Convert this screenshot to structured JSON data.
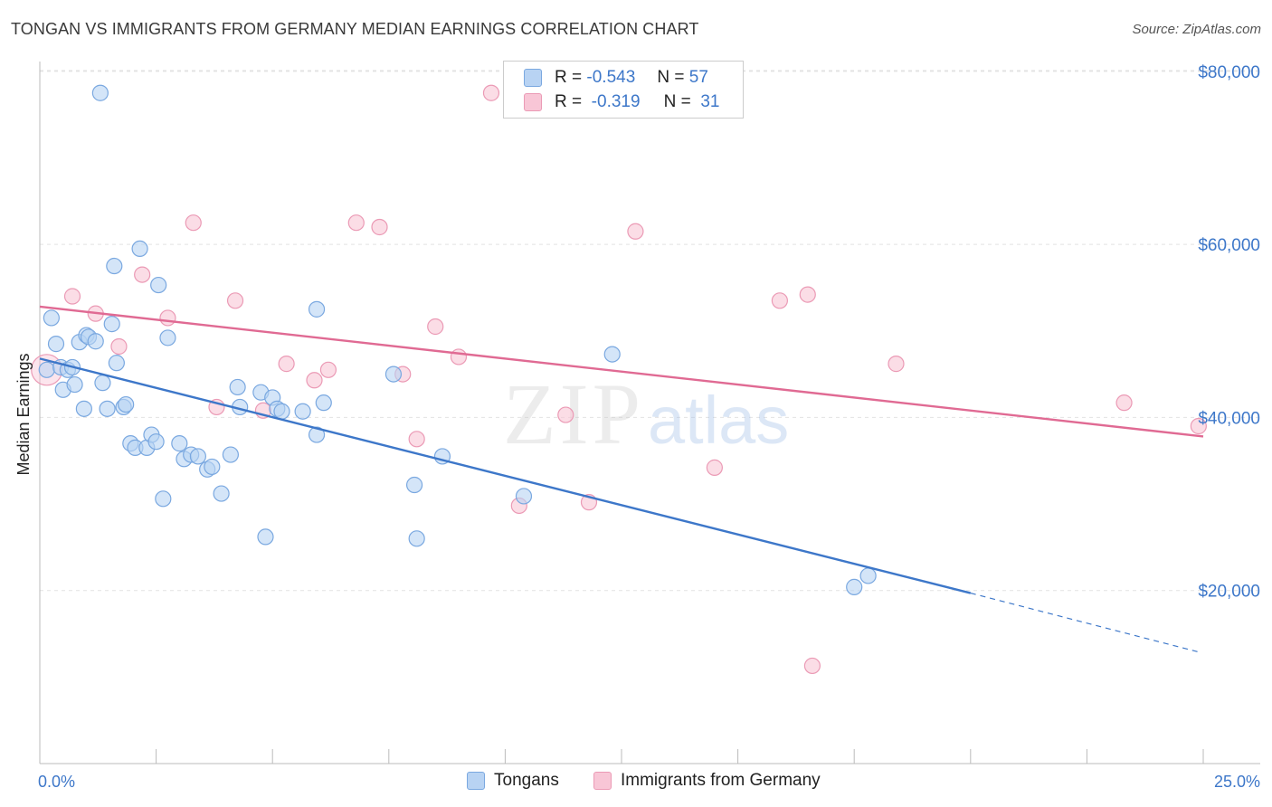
{
  "title": "TONGAN VS IMMIGRANTS FROM GERMANY MEDIAN EARNINGS CORRELATION CHART",
  "source": "Source: ZipAtlas.com",
  "watermark": {
    "zip": "ZIP",
    "atlas": "atlas"
  },
  "legend": {
    "r_label": "R =",
    "n_label": "N =",
    "series": [
      {
        "r": "-0.543",
        "n": "57",
        "color": "#3d77c9",
        "fill": "#b8d3f3",
        "stroke": "#7aa8e0"
      },
      {
        "r": "-0.319",
        "n": "31",
        "color": "#e06a93",
        "fill": "#f8c6d6",
        "stroke": "#eb9ab5"
      }
    ]
  },
  "bottom_legend": [
    "Tongans",
    "Immigrants from Germany"
  ],
  "chart_data": {
    "type": "scatter",
    "title": "TONGAN VS IMMIGRANTS FROM GERMANY MEDIAN EARNINGS CORRELATION CHART",
    "xlabel": "",
    "ylabel": "Median Earnings",
    "xlim": [
      0,
      25
    ],
    "ylim": [
      0,
      83000
    ],
    "x_tick_labels": [
      "0.0%",
      "25.0%"
    ],
    "y_ticks": [
      20000,
      40000,
      60000,
      80000
    ],
    "y_tick_labels": [
      "$20,000",
      "$40,000",
      "$60,000",
      "$80,000"
    ],
    "grid": true,
    "series": [
      {
        "name": "Tongans",
        "color": "#3d77c9",
        "trend": {
          "x0": 0,
          "y0": 46800,
          "x1": 20,
          "y1": 19700,
          "dash_to_x": 24.9,
          "dash_to_y": 12900
        },
        "points": [
          [
            0.15,
            45500
          ],
          [
            0.25,
            51500
          ],
          [
            0.35,
            48500
          ],
          [
            0.45,
            45800
          ],
          [
            0.5,
            43200
          ],
          [
            0.6,
            45500
          ],
          [
            0.7,
            45800
          ],
          [
            0.75,
            43800
          ],
          [
            0.85,
            48700
          ],
          [
            0.95,
            41000
          ],
          [
            1.0,
            49500
          ],
          [
            1.05,
            49300
          ],
          [
            1.2,
            48800
          ],
          [
            1.3,
            77500
          ],
          [
            1.35,
            44000
          ],
          [
            1.45,
            41000
          ],
          [
            1.55,
            50800
          ],
          [
            1.6,
            57500
          ],
          [
            1.65,
            46300
          ],
          [
            1.8,
            41200
          ],
          [
            1.85,
            41500
          ],
          [
            1.95,
            37000
          ],
          [
            2.05,
            36500
          ],
          [
            2.15,
            59500
          ],
          [
            2.3,
            36500
          ],
          [
            2.4,
            38000
          ],
          [
            2.5,
            37200
          ],
          [
            2.55,
            55300
          ],
          [
            2.65,
            30600
          ],
          [
            2.75,
            49200
          ],
          [
            3.0,
            37000
          ],
          [
            3.1,
            35200
          ],
          [
            3.25,
            35700
          ],
          [
            3.4,
            35500
          ],
          [
            3.6,
            34000
          ],
          [
            3.7,
            34300
          ],
          [
            3.9,
            31200
          ],
          [
            4.1,
            35700
          ],
          [
            4.25,
            43500
          ],
          [
            4.3,
            41200
          ],
          [
            4.75,
            42900
          ],
          [
            4.85,
            26200
          ],
          [
            5.0,
            42300
          ],
          [
            5.1,
            41000
          ],
          [
            5.2,
            40700
          ],
          [
            5.65,
            40700
          ],
          [
            5.95,
            38000
          ],
          [
            5.95,
            52500
          ],
          [
            6.1,
            41700
          ],
          [
            7.6,
            45000
          ],
          [
            8.05,
            32200
          ],
          [
            8.1,
            26000
          ],
          [
            8.65,
            35500
          ],
          [
            10.4,
            30900
          ],
          [
            12.3,
            47300
          ],
          [
            17.5,
            20400
          ],
          [
            17.8,
            21700
          ]
        ]
      },
      {
        "name": "Immigrants from Germany",
        "color": "#e06a93",
        "trend": {
          "x0": 0,
          "y0": 52800,
          "x1": 25,
          "y1": 37800
        },
        "points": [
          [
            0.15,
            45500
          ],
          [
            0.7,
            54000
          ],
          [
            1.2,
            52000
          ],
          [
            1.7,
            48200
          ],
          [
            2.2,
            56500
          ],
          [
            2.75,
            51500
          ],
          [
            3.3,
            62500
          ],
          [
            3.8,
            41200
          ],
          [
            4.2,
            53500
          ],
          [
            4.8,
            40800
          ],
          [
            5.3,
            46200
          ],
          [
            5.9,
            44300
          ],
          [
            6.2,
            45500
          ],
          [
            6.8,
            62500
          ],
          [
            7.3,
            62000
          ],
          [
            7.8,
            45000
          ],
          [
            8.1,
            37500
          ],
          [
            8.5,
            50500
          ],
          [
            9.0,
            47000
          ],
          [
            9.7,
            77500
          ],
          [
            10.3,
            29800
          ],
          [
            11.3,
            40300
          ],
          [
            11.8,
            30200
          ],
          [
            12.8,
            61500
          ],
          [
            14.5,
            34200
          ],
          [
            15.9,
            53500
          ],
          [
            16.5,
            54200
          ],
          [
            16.6,
            11300
          ],
          [
            18.4,
            46200
          ],
          [
            23.3,
            41700
          ],
          [
            24.9,
            39000
          ]
        ]
      }
    ]
  }
}
